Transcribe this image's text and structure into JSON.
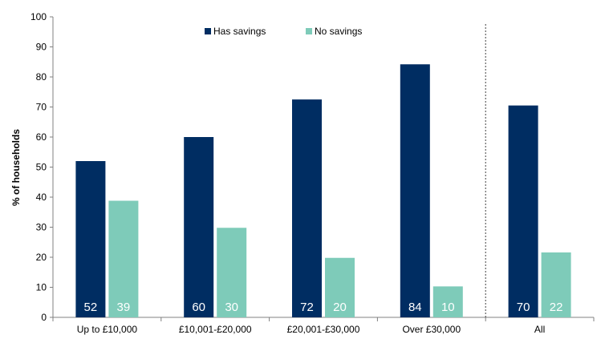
{
  "chart_data": {
    "type": "bar",
    "categories": [
      "Up to £10,000",
      "£10,001-£20,000",
      "£20,001-£30,000",
      "Over £30,000",
      "All"
    ],
    "series": [
      {
        "name": "Has savings",
        "values": [
          52,
          60,
          72,
          84,
          70
        ],
        "color": "#002D62"
      },
      {
        "name": "No savings",
        "values": [
          39,
          30,
          20,
          10,
          22
        ],
        "color": "#7ECBB9"
      }
    ],
    "bar_values": [
      [
        52,
        60,
        72.5,
        84.2,
        70.5
      ],
      [
        38.8,
        29.8,
        19.8,
        10.3,
        21.6
      ]
    ],
    "ylabel": "% of households",
    "xlabel": "",
    "ylim": [
      0,
      100
    ],
    "yticks": [
      "0",
      "10",
      "20",
      "30",
      "40",
      "50",
      "60",
      "70",
      "80",
      "90",
      "100"
    ],
    "grid": false,
    "legend_position": "top-center",
    "separator_before": "All"
  }
}
